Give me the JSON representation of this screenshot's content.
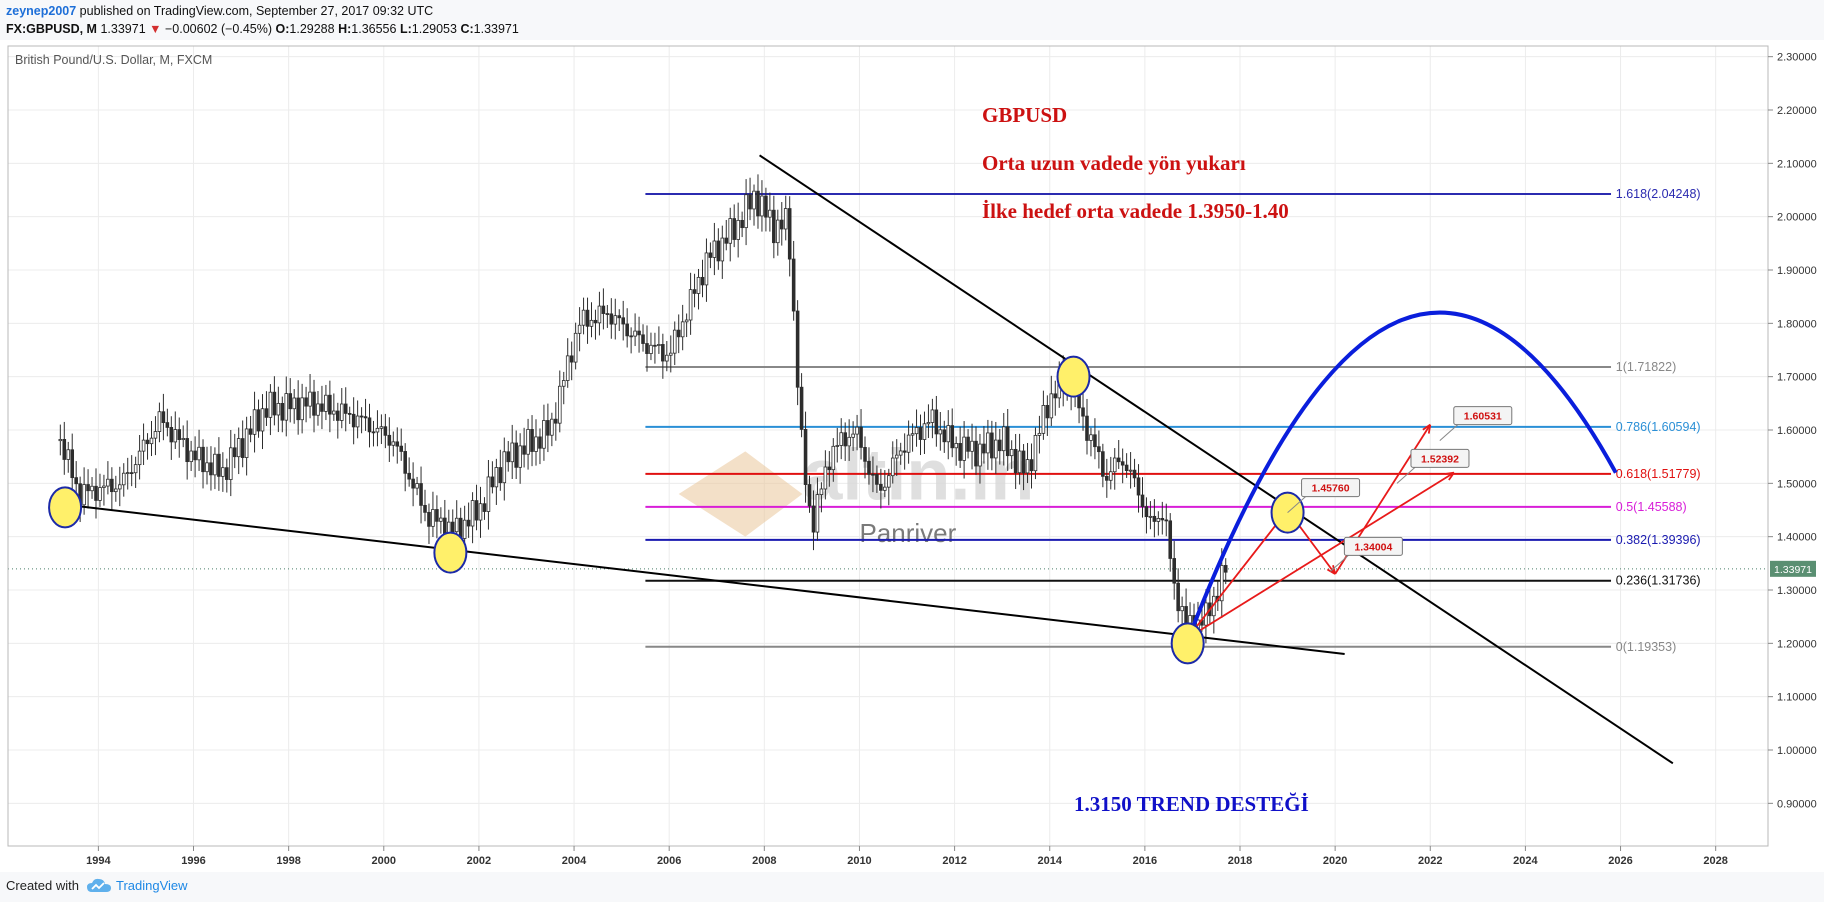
{
  "header": {
    "author": "zeynep2007",
    "published": "published on TradingView.com, September 27, 2017 09:32 UTC",
    "symbol": "FX:GBPUSD, M",
    "last": "1.33971",
    "change": "−0.00602 (−0.45%)",
    "open_label": "O:",
    "open": "1.29288",
    "high_label": "H:",
    "high": "1.36556",
    "low_label": "L:",
    "low": "1.29053",
    "close_label": "C:",
    "close": "1.33971"
  },
  "footer": {
    "created_with": "Created with",
    "brand": "TradingView"
  },
  "colors": {
    "grid": "#e8e8e8",
    "candle": "#2d2d2d",
    "background": "#ffffff",
    "title_red": "#cc1111",
    "trend_blue": "#1010c8",
    "arc_blue": "#0a1edc"
  },
  "chart_data": {
    "type": "candlestick",
    "title": "British Pound/U.S. Dollar, M, FXCM",
    "x_axis": {
      "ticks": [
        "1994",
        "1996",
        "1998",
        "2000",
        "2002",
        "2004",
        "2006",
        "2008",
        "2010",
        "2012",
        "2014",
        "2016",
        "2018",
        "2020",
        "2022",
        "2024",
        "2026",
        "2028"
      ],
      "range": [
        1992.1,
        2029.1
      ]
    },
    "y_axis": {
      "ticks": [
        "0.90000",
        "1.00000",
        "1.10000",
        "1.20000",
        "1.30000",
        "1.40000",
        "1.50000",
        "1.60000",
        "1.70000",
        "1.80000",
        "1.90000",
        "2.00000",
        "2.10000",
        "2.20000",
        "2.30000"
      ],
      "range": [
        0.82,
        2.32
      ]
    },
    "current_price": "1.33971",
    "series_anchors": [
      [
        1993.2,
        1.58
      ],
      [
        1993.6,
        1.48
      ],
      [
        1994.5,
        1.5
      ],
      [
        1995.3,
        1.62
      ],
      [
        1996.0,
        1.55
      ],
      [
        1996.6,
        1.52
      ],
      [
        1997.5,
        1.64
      ],
      [
        1998.5,
        1.65
      ],
      [
        1999.5,
        1.62
      ],
      [
        2000.2,
        1.58
      ],
      [
        2000.9,
        1.44
      ],
      [
        2001.5,
        1.41
      ],
      [
        2002.0,
        1.45
      ],
      [
        2002.5,
        1.54
      ],
      [
        2003.5,
        1.6
      ],
      [
        2004.1,
        1.8
      ],
      [
        2004.7,
        1.82
      ],
      [
        2005.5,
        1.76
      ],
      [
        2006.0,
        1.74
      ],
      [
        2006.8,
        1.92
      ],
      [
        2007.4,
        1.98
      ],
      [
        2007.8,
        2.04
      ],
      [
        2008.2,
        1.98
      ],
      [
        2008.5,
        1.99
      ],
      [
        2008.8,
        1.55
      ],
      [
        2009.0,
        1.42
      ],
      [
        2009.4,
        1.56
      ],
      [
        2009.9,
        1.6
      ],
      [
        2010.4,
        1.48
      ],
      [
        2010.9,
        1.57
      ],
      [
        2011.5,
        1.62
      ],
      [
        2012.0,
        1.57
      ],
      [
        2012.5,
        1.56
      ],
      [
        2013.0,
        1.58
      ],
      [
        2013.5,
        1.52
      ],
      [
        2014.0,
        1.66
      ],
      [
        2014.4,
        1.7
      ],
      [
        2014.7,
        1.62
      ],
      [
        2015.2,
        1.51
      ],
      [
        2015.5,
        1.55
      ],
      [
        2015.9,
        1.48
      ],
      [
        2016.1,
        1.42
      ],
      [
        2016.4,
        1.45
      ],
      [
        2016.6,
        1.31
      ],
      [
        2016.9,
        1.23
      ],
      [
        2017.3,
        1.25
      ],
      [
        2017.7,
        1.34
      ]
    ],
    "levels": [
      {
        "label": "1.618(2.04248)",
        "value": 2.04248,
        "color": "#2b2bb0"
      },
      {
        "label": "1(1.71822)",
        "value": 1.71822,
        "color": "#888888"
      },
      {
        "label": "0.786(1.60594)",
        "value": 1.60594,
        "color": "#2a8fd6"
      },
      {
        "label": "0.618(1.51779)",
        "value": 1.51779,
        "color": "#e01010"
      },
      {
        "label": "0.5(1.45588)",
        "value": 1.45588,
        "color": "#d81ed8"
      },
      {
        "label": "0.382(1.39396)",
        "value": 1.39396,
        "color": "#1a1ab0"
      },
      {
        "label": "0.236(1.31736)",
        "value": 1.31736,
        "color": "#111111"
      },
      {
        "label": "0(1.19353)",
        "value": 1.19353,
        "color": "#888888"
      }
    ],
    "trendlines": [
      {
        "from": [
          1993.3,
          1.46
        ],
        "to": [
          2020.2,
          1.18
        ]
      },
      {
        "from": [
          2007.9,
          2.115
        ],
        "to": [
          2027.1,
          0.975
        ]
      }
    ],
    "circled_points": [
      [
        1993.3,
        1.455
      ],
      [
        2001.4,
        1.37
      ],
      [
        2014.5,
        1.7
      ],
      [
        2016.9,
        1.2
      ],
      [
        2019.0,
        1.445
      ]
    ],
    "projection_path": [
      [
        2016.9,
        1.21
      ],
      [
        2019.0,
        1.45
      ],
      [
        2020.0,
        1.33
      ]
    ],
    "projection_path2": [
      [
        2016.9,
        1.21
      ],
      [
        2022.5,
        1.52
      ]
    ],
    "projection_path3": [
      [
        2020.0,
        1.33
      ],
      [
        2022.0,
        1.61
      ]
    ],
    "targets": [
      {
        "label": "1.45760",
        "anchor": [
          2019.0,
          1.445
        ]
      },
      {
        "label": "1.34004",
        "anchor": [
          2019.9,
          1.335
        ]
      },
      {
        "label": "1.52392",
        "anchor": [
          2021.3,
          1.5
        ]
      },
      {
        "label": "1.60531",
        "anchor": [
          2022.2,
          1.58
        ]
      }
    ],
    "annotations": {
      "line1": "GBPUSD",
      "line2": "Orta uzun vadede yön yukarı",
      "line3": "İlke hedef orta vadede 1.3950-1.40",
      "support": "1.3150 TREND DESTEĞİ"
    },
    "watermark": {
      "brand": "altin.in",
      "sub": "Panriver"
    }
  }
}
